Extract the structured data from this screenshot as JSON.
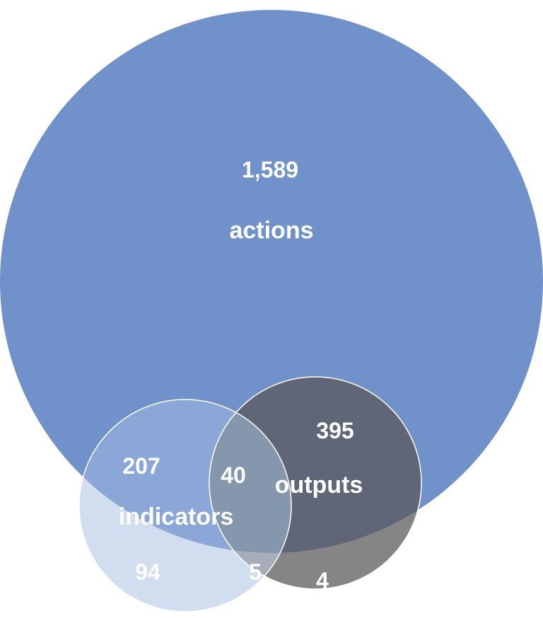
{
  "venn": {
    "actions": {
      "label": "actions",
      "count": "1,589",
      "color": "#7191CB"
    },
    "outputs": {
      "label": "outputs",
      "count": "395",
      "color": "#5F6678"
    },
    "indicators": {
      "label": "indicators",
      "count": "207",
      "color": "#8AA7D7"
    },
    "intersections": {
      "actions_outputs_indicators": "40",
      "indicators_only": "94",
      "outputs_indicators_only": "5",
      "outputs_only": "4"
    }
  }
}
